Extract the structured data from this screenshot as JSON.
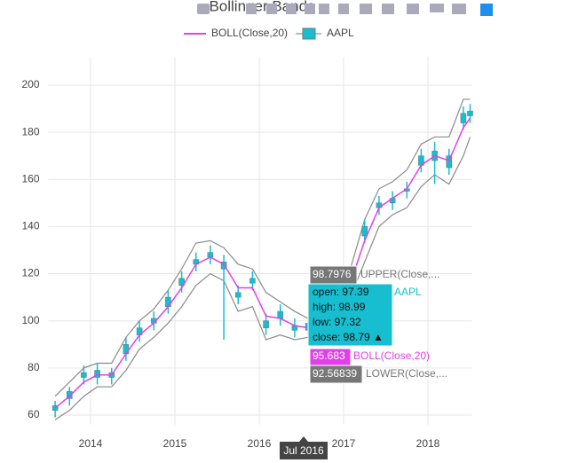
{
  "chart_data": {
    "type": "candlestick",
    "title": "Bollinger Bands",
    "x": [
      2013.58,
      2013.75,
      2013.92,
      2014.08,
      2014.25,
      2014.42,
      2014.58,
      2014.75,
      2014.92,
      2015.08,
      2015.25,
      2015.42,
      2015.58,
      2015.75,
      2015.92,
      2016.08,
      2016.25,
      2016.42,
      2016.58,
      2016.75,
      2016.92,
      2017.08,
      2017.25,
      2017.42,
      2017.58,
      2017.75,
      2017.92,
      2018.08,
      2018.25,
      2018.42,
      2018.5
    ],
    "candles": {
      "name": "AAPL",
      "color": "#17becf",
      "line": "#5f7f86",
      "open": [
        62,
        67,
        76,
        79,
        76,
        86,
        94,
        99,
        106,
        115,
        124,
        129,
        125,
        112,
        118,
        100,
        101,
        98,
        96,
        106,
        111,
        116,
        136,
        148,
        150,
        156,
        166,
        172,
        165,
        184,
        187
      ],
      "high": [
        66,
        72,
        81,
        82,
        80,
        93,
        100,
        104,
        113,
        121,
        129,
        132,
        128,
        115,
        121,
        103,
        107,
        101,
        102,
        111,
        116,
        122,
        143,
        153,
        155,
        159,
        173,
        176,
        173,
        191,
        192
      ],
      "low": [
        59,
        64,
        73,
        73,
        73,
        83,
        91,
        96,
        103,
        112,
        121,
        124,
        92,
        107,
        113,
        94,
        98,
        93,
        93,
        103,
        108,
        113,
        133,
        145,
        147,
        152,
        163,
        158,
        162,
        181,
        184
      ],
      "close": [
        64,
        70,
        78,
        76,
        78,
        90,
        97,
        101,
        110,
        118,
        126,
        127,
        122,
        110,
        116,
        97,
        104,
        96,
        99,
        108,
        113,
        119,
        140,
        150,
        152,
        155,
        170,
        168,
        170,
        188,
        189
      ]
    },
    "series": [
      {
        "name": "BOLL(Close,20)",
        "color": "#e040e8",
        "values": [
          63,
          68,
          74,
          77,
          77,
          86,
          94,
          99,
          106,
          114,
          124,
          127,
          124,
          114,
          114,
          102,
          101,
          98,
          97,
          105,
          110,
          116,
          134,
          148,
          152,
          156,
          166,
          170,
          168,
          182,
          186
        ]
      }
    ],
    "bands": {
      "color": "#8a8a8a",
      "upper": [
        68,
        74,
        80,
        82,
        82,
        93,
        100,
        105,
        113,
        122,
        133,
        134,
        131,
        124,
        122,
        112,
        108,
        104,
        101,
        113,
        116,
        122,
        143,
        156,
        159,
        164,
        175,
        178,
        178,
        194,
        194
      ],
      "lower": [
        58,
        62,
        68,
        72,
        72,
        79,
        88,
        93,
        99,
        106,
        115,
        120,
        117,
        104,
        106,
        92,
        94,
        92,
        93,
        97,
        104,
        110,
        125,
        140,
        145,
        148,
        157,
        162,
        158,
        170,
        178
      ]
    },
    "xlim": [
      2013.5,
      2018.52
    ],
    "xticks": [
      2014,
      2015,
      2016,
      2017,
      2018
    ],
    "ylim": [
      56,
      212
    ],
    "yticks": [
      60,
      80,
      100,
      120,
      140,
      160,
      180,
      200
    ],
    "grid": true,
    "hover": {
      "date": "Jul 2016",
      "upper": {
        "value": 98.7976,
        "label": "UPPER(Close,..."
      },
      "candle": {
        "lines": [
          "open: 97.39",
          "high: 98.99",
          "low: 97.32",
          "close: 98.79 ▲"
        ],
        "label": "AAPL"
      },
      "boll": {
        "value": 95.683,
        "label": "BOLL(Close,20)"
      },
      "lower": {
        "value": 92.56839,
        "label": "LOWER(Close,..."
      }
    }
  }
}
